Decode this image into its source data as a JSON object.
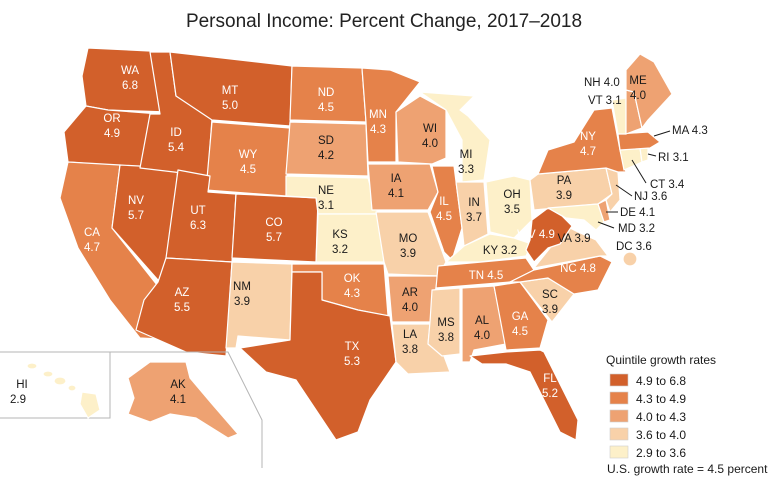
{
  "title": "Personal Income: Percent Change, 2017–2018",
  "colors": {
    "q1": "#d2602b",
    "q2": "#e5824a",
    "q3": "#eea272",
    "q4": "#f8d1a9",
    "q5": "#fdf0c9"
  },
  "legend": {
    "title": "Quintile growth rates",
    "items": [
      {
        "label": "4.9 to 6.8",
        "color": "#d2602b"
      },
      {
        "label": "4.3 to 4.9",
        "color": "#e5824a"
      },
      {
        "label": "4.0 to 4.3",
        "color": "#eea272"
      },
      {
        "label": "3.6 to 4.0",
        "color": "#f8d1a9"
      },
      {
        "label": "2.9 to 3.6",
        "color": "#fdf0c9"
      }
    ],
    "note": "U.S. growth rate = 4.5 percent"
  },
  "states": {
    "WA": "6.8",
    "OR": "4.9",
    "CA": "4.7",
    "NV": "5.7",
    "ID": "5.4",
    "MT": "5.0",
    "WY": "4.5",
    "UT": "6.3",
    "AZ": "5.5",
    "CO": "5.7",
    "NM": "3.9",
    "ND": "4.5",
    "SD": "4.2",
    "NE": "3.1",
    "KS": "3.2",
    "OK": "4.3",
    "TX": "5.3",
    "MN": "4.3",
    "IA": "4.1",
    "MO": "3.9",
    "AR": "4.0",
    "LA": "3.8",
    "WI": "4.0",
    "IL": "4.5",
    "MS": "3.8",
    "MI": "3.3",
    "IN": "3.7",
    "OH": "3.5",
    "KY": "3.2",
    "TN": "4.5",
    "AL": "4.0",
    "GA": "4.5",
    "FL": "5.2",
    "SC": "3.9",
    "NC": "4.8",
    "VA": "3.9",
    "WV": "4.9",
    "PA": "3.9",
    "NY": "4.7",
    "ME": "4.0",
    "VT": "3.1",
    "NH": "4.0",
    "MA": "4.3",
    "RI": "3.1",
    "CT": "3.4",
    "NJ": "3.6",
    "DE": "4.1",
    "MD": "3.2",
    "DC": "3.6",
    "AK": "4.1",
    "HI": "2.9"
  }
}
